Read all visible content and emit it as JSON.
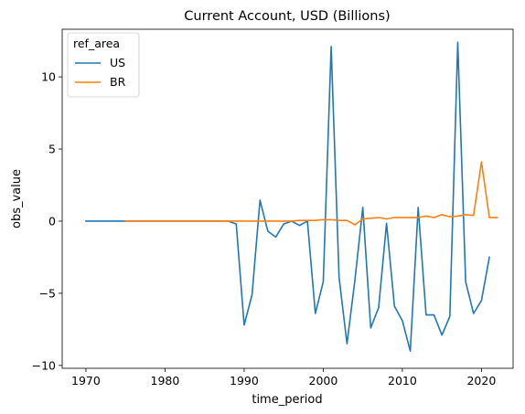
{
  "chart_data": {
    "type": "line",
    "title": "Current Account, USD (Billions)",
    "xlabel": "time_period",
    "ylabel": "obs_value",
    "xlim": [
      1967,
      2024
    ],
    "ylim": [
      -10.2,
      13.3
    ],
    "x_ticks": [
      1970,
      1980,
      1990,
      2000,
      2010,
      2020
    ],
    "y_ticks": [
      -10,
      -5,
      0,
      5,
      10
    ],
    "y_tick_labels": [
      "−10",
      "−5",
      "0",
      "5",
      "10"
    ],
    "grid": false,
    "legend": {
      "title": "ref_area",
      "placement": "top-left",
      "entries": [
        "US",
        "BR"
      ]
    },
    "series": [
      {
        "name": "US",
        "color": "#1f77b4",
        "x": [
          1970,
          1971,
          1972,
          1973,
          1974,
          1975,
          1976,
          1977,
          1978,
          1979,
          1980,
          1981,
          1982,
          1983,
          1984,
          1985,
          1986,
          1987,
          1988,
          1989,
          1990,
          1991,
          1992,
          1993,
          1994,
          1995,
          1996,
          1997,
          1998,
          1999,
          2000,
          2001,
          2002,
          2003,
          2004,
          2005,
          2006,
          2007,
          2008,
          2009,
          2010,
          2011,
          2012,
          2013,
          2014,
          2015,
          2016,
          2017,
          2018,
          2019,
          2020,
          2021
        ],
        "y": [
          0,
          0,
          0,
          0,
          0,
          0,
          0,
          0,
          0,
          0,
          0,
          0,
          0,
          0,
          0,
          0,
          0,
          0,
          0,
          -0.2,
          -7.2,
          -5.1,
          1.45,
          -0.7,
          -1.1,
          -0.2,
          0,
          -0.3,
          0,
          -6.4,
          -4.2,
          12.1,
          -3.9,
          -8.5,
          -4.1,
          0.95,
          -7.4,
          -6.0,
          -0.15,
          -5.9,
          -6.9,
          -9.0,
          0.95,
          -6.5,
          -6.5,
          -7.9,
          -6.6,
          12.4,
          -4.2,
          -6.4,
          -5.5,
          -2.5
        ]
      },
      {
        "name": "BR",
        "color": "#ff7f0e",
        "x": [
          1975,
          1976,
          1977,
          1978,
          1979,
          1980,
          1981,
          1982,
          1983,
          1984,
          1985,
          1986,
          1987,
          1988,
          1989,
          1990,
          1991,
          1992,
          1993,
          1994,
          1995,
          1996,
          1997,
          1998,
          1999,
          2000,
          2001,
          2002,
          2003,
          2004,
          2005,
          2006,
          2007,
          2008,
          2009,
          2010,
          2011,
          2012,
          2013,
          2014,
          2015,
          2016,
          2017,
          2018,
          2019,
          2020,
          2021,
          2022
        ],
        "y": [
          0,
          0,
          0,
          0,
          0,
          0,
          0,
          0,
          0,
          0,
          0,
          0,
          0,
          0,
          0,
          0,
          0,
          0,
          0,
          0,
          0,
          0,
          0.05,
          0.05,
          0.05,
          0.1,
          0.1,
          0.05,
          0.05,
          -0.25,
          0.15,
          0.2,
          0.25,
          0.15,
          0.25,
          0.25,
          0.25,
          0.25,
          0.35,
          0.25,
          0.45,
          0.3,
          0.35,
          0.45,
          0.4,
          4.1,
          0.25,
          0.25
        ]
      }
    ]
  }
}
